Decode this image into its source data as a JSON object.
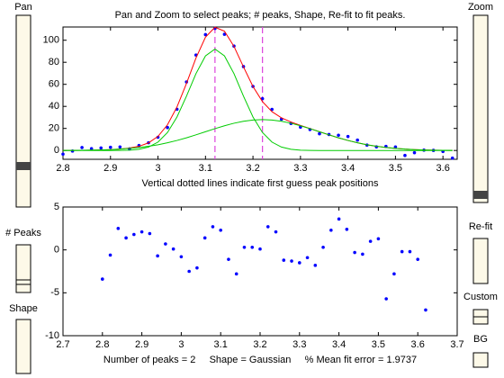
{
  "chart_data": [
    {
      "type": "line",
      "title": "Pan and Zoom to select peaks; # peaks, Shape, Re-fit to fit peaks.",
      "x_label": "Vertical dotted lines indicate first guess peak positions",
      "x": [
        2.8,
        2.82,
        2.84,
        2.86,
        2.88,
        2.9,
        2.92,
        2.94,
        2.96,
        2.98,
        3.0,
        3.02,
        3.04,
        3.06,
        3.08,
        3.1,
        3.12,
        3.14,
        3.16,
        3.18,
        3.2,
        3.22,
        3.24,
        3.26,
        3.28,
        3.3,
        3.32,
        3.34,
        3.36,
        3.38,
        3.4,
        3.42,
        3.44,
        3.46,
        3.48,
        3.5,
        3.52,
        3.54,
        3.56,
        3.58,
        3.6,
        3.62
      ],
      "series": [
        {
          "color": "#0000ff",
          "mode": "dots",
          "values": [
            -3.3,
            -0.5,
            2.7,
            1.7,
            2.3,
            2.9,
            3.2,
            1.5,
            4.5,
            7.0,
            12.0,
            20.8,
            37.4,
            62.2,
            86.6,
            105.1,
            110.7,
            105.4,
            94.7,
            76.1,
            58.1,
            47.0,
            37.3,
            28.4,
            24.5,
            21.2,
            19.0,
            15.2,
            14.5,
            13.8,
            12.7,
            9.4,
            4.9,
            3.3,
            3.7,
            3.2,
            -4.5,
            -2.0,
            0.3,
            0.1,
            -0.9,
            -6.9
          ]
        },
        {
          "color": "#ff0000",
          "mode": "line",
          "values": [
            0.1,
            0.1,
            0.2,
            0.3,
            0.5,
            0.8,
            1.3,
            2.2,
            3.8,
            6.9,
            12.8,
            23.3,
            39.5,
            60.8,
            83.9,
            102.8,
            111.8,
            108.2,
            94.4,
            75.8,
            58.0,
            44.3,
            35.2,
            29.6,
            25.8,
            22.7,
            19.9,
            17.0,
            14.2,
            11.5,
            9.1,
            7.0,
            5.2,
            3.8,
            2.7,
            1.9,
            1.25,
            0.8,
            0.5,
            0.3,
            0.2,
            0.1
          ]
        },
        {
          "color": "#00cc00",
          "mode": "line",
          "values": [
            0,
            0,
            0,
            0,
            0,
            0,
            0.1,
            0.3,
            1.1,
            3.1,
            7.6,
            16.3,
            30.4,
            49.3,
            69.7,
            85.8,
            92,
            85.8,
            69.7,
            49.3,
            30.4,
            16.3,
            7.6,
            3.1,
            1.1,
            0.3,
            0.1,
            0,
            0,
            0,
            0,
            0,
            0,
            0,
            0,
            0,
            0,
            0,
            0,
            0,
            0,
            0
          ]
        },
        {
          "color": "#00cc00",
          "mode": "line",
          "values": [
            0.06,
            0.11,
            0.19,
            0.32,
            0.51,
            0.81,
            1.25,
            1.86,
            2.7,
            3.8,
            5.2,
            7.0,
            9.1,
            11.5,
            14.2,
            17.0,
            19.8,
            22.4,
            24.7,
            26.5,
            27.6,
            28,
            27.6,
            26.5,
            24.7,
            22.4,
            19.8,
            17.0,
            14.2,
            11.5,
            9.1,
            7.0,
            5.2,
            3.8,
            2.7,
            1.9,
            1.25,
            0.8,
            0.5,
            0.3,
            0.2,
            0.1
          ]
        }
      ],
      "vlines": [
        3.12,
        3.22
      ],
      "vline_color": "#dd44dd",
      "xlim": [
        2.8,
        3.63
      ],
      "xticks": [
        2.8,
        2.9,
        3,
        3.1,
        3.2,
        3.3,
        3.4,
        3.5,
        3.6
      ],
      "ylim": [
        -8,
        112
      ],
      "yticks": [
        0,
        20,
        40,
        60,
        80,
        100
      ],
      "grid": false
    },
    {
      "type": "scatter",
      "x_label": "Number of peaks = 2     Shape = Gaussian     % Mean fit error = 1.9737",
      "x": [
        2.8,
        2.82,
        2.84,
        2.86,
        2.88,
        2.9,
        2.92,
        2.94,
        2.96,
        2.98,
        3.0,
        3.02,
        3.04,
        3.06,
        3.08,
        3.1,
        3.12,
        3.14,
        3.16,
        3.18,
        3.2,
        3.22,
        3.24,
        3.26,
        3.28,
        3.3,
        3.32,
        3.34,
        3.36,
        3.38,
        3.4,
        3.42,
        3.44,
        3.46,
        3.48,
        3.5,
        3.52,
        3.54,
        3.56,
        3.58,
        3.6,
        3.62
      ],
      "series": [
        {
          "color": "#0000ff",
          "mode": "dots",
          "values": [
            -3.4,
            -0.6,
            2.5,
            1.4,
            1.8,
            2.1,
            1.9,
            -0.7,
            0.7,
            0.1,
            -0.8,
            -2.5,
            -2.1,
            1.4,
            2.7,
            2.3,
            -1.1,
            -2.8,
            0.3,
            0.3,
            0.1,
            2.7,
            2.1,
            -1.2,
            -1.3,
            -1.5,
            -0.9,
            -1.8,
            0.3,
            2.3,
            3.6,
            2.4,
            -0.3,
            -0.5,
            1.0,
            1.3,
            -5.7,
            -2.8,
            -0.2,
            -0.2,
            -1.1,
            -7.0
          ]
        }
      ],
      "xlim": [
        2.7,
        3.7
      ],
      "xticks": [
        2.7,
        2.8,
        2.9,
        3,
        3.1,
        3.2,
        3.3,
        3.4,
        3.5,
        3.6,
        3.7
      ],
      "ylim": [
        -10,
        5
      ],
      "yticks": [
        -10,
        -5,
        0,
        5
      ],
      "grid": false
    }
  ],
  "controls": {
    "pan": "Pan",
    "zoom": "Zoom",
    "peaks": "# Peaks",
    "refit": "Re-fit",
    "shape": "Shape",
    "custom": "Custom",
    "bg": "BG"
  }
}
